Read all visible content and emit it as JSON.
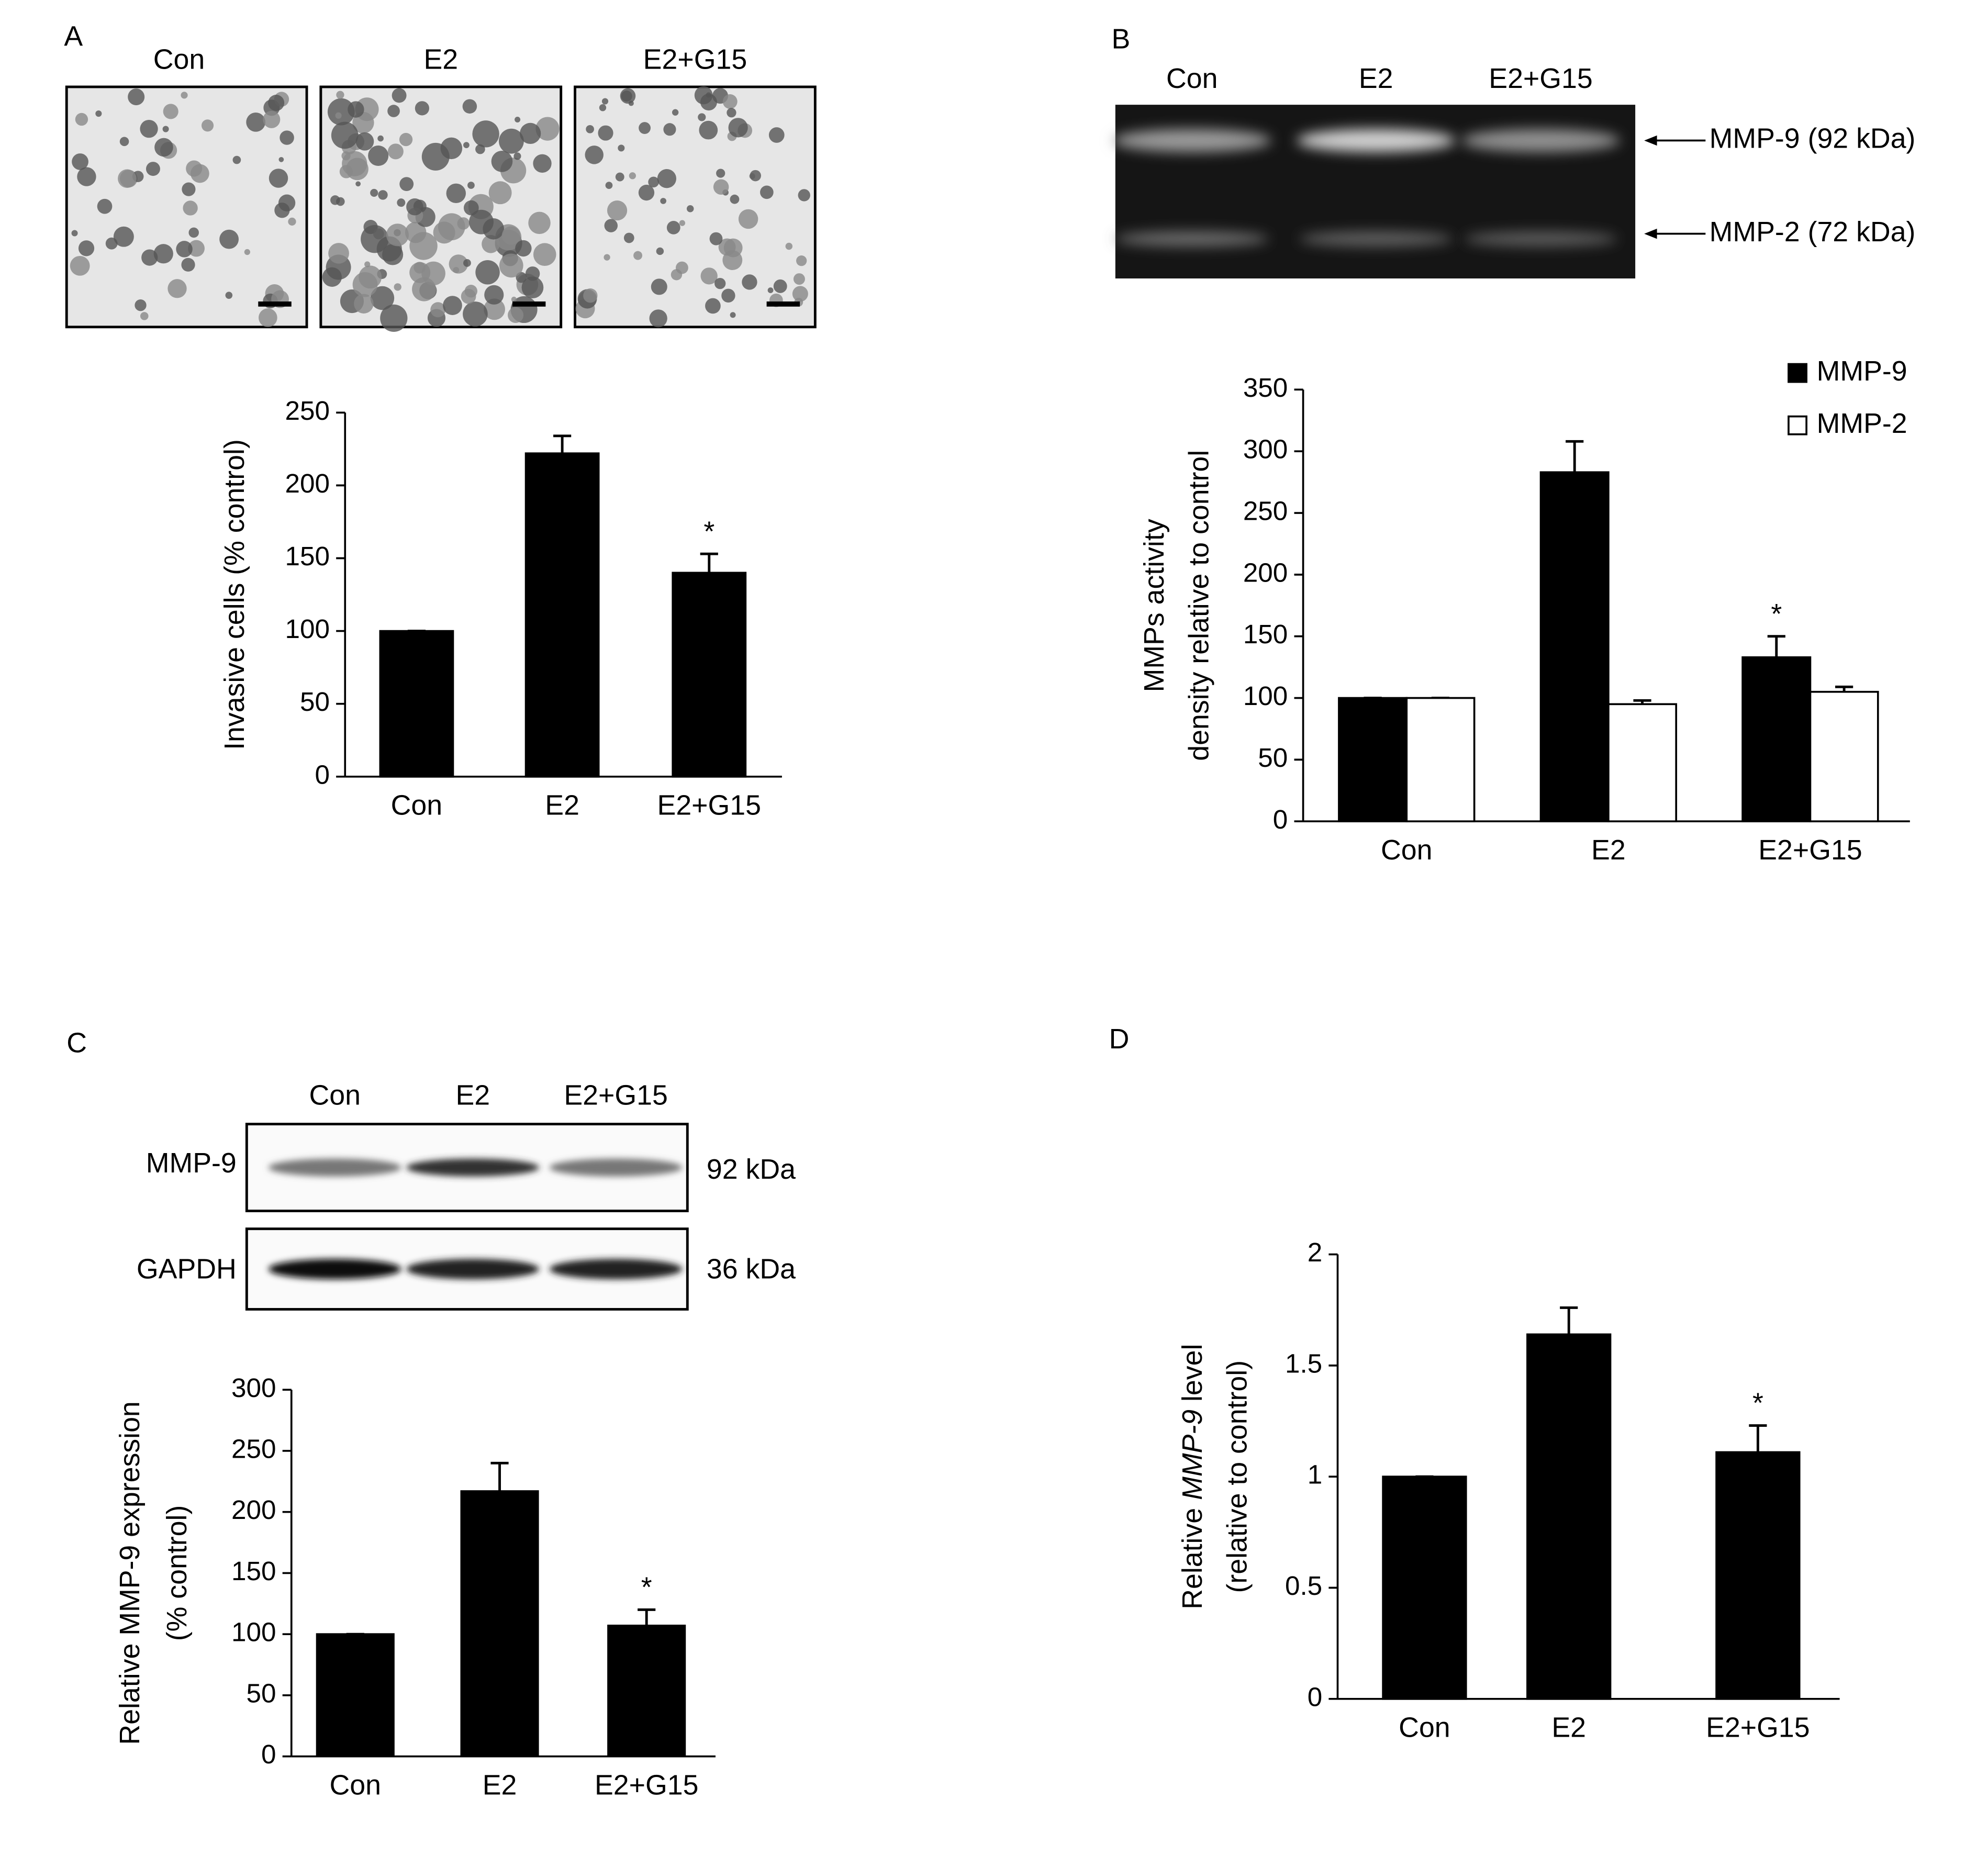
{
  "chart_data": [
    {
      "type": "bar",
      "panel_label": "A",
      "image_labels": [
        "Con",
        "E2",
        "E2+G15"
      ],
      "y_label": "Invasive cells (% control)",
      "categories": [
        "Con",
        "E2",
        "E2+G15"
      ],
      "values": [
        100,
        222,
        140
      ],
      "errors": [
        0,
        12,
        13
      ],
      "significance": [
        null,
        null,
        "*"
      ],
      "color": "#000000",
      "ylim": [
        0,
        250
      ],
      "yticks": [
        0,
        50,
        100,
        150,
        200,
        250
      ]
    },
    {
      "type": "bar",
      "panel_label": "B",
      "gel": {
        "lane_labels": [
          "Con",
          "E2",
          "E2+G15"
        ],
        "band_labels": [
          "MMP-9 (92 kDa)",
          "MMP-2 (72 kDa)"
        ]
      },
      "y_label": [
        "MMPs activity",
        "density relative to control"
      ],
      "categories": [
        "Con",
        "E2",
        "E2+G15"
      ],
      "series": [
        {
          "name": "MMP-9",
          "color": "#000000",
          "values": [
            100,
            283,
            133
          ],
          "errors": [
            0,
            25,
            17
          ],
          "significance": [
            null,
            null,
            "*"
          ]
        },
        {
          "name": "MMP-2",
          "color": "#ffffff",
          "values": [
            100,
            95,
            105
          ],
          "errors": [
            0,
            3,
            4
          ],
          "significance": [
            null,
            null,
            null
          ]
        }
      ],
      "ylim": [
        0,
        350
      ],
      "yticks": [
        0,
        50,
        100,
        150,
        200,
        250,
        300,
        350
      ],
      "legend": "upper right"
    },
    {
      "type": "bar",
      "panel_label": "C",
      "blot": {
        "lane_labels": [
          "Con",
          "E2",
          "E2+G15"
        ],
        "rows": [
          {
            "label": "MMP-9",
            "size": "92 kDa"
          },
          {
            "label": "GAPDH",
            "size": "36 kDa"
          }
        ]
      },
      "y_label": [
        "Relative MMP-9 expression",
        "(% control)"
      ],
      "categories": [
        "Con",
        "E2",
        "E2+G15"
      ],
      "values": [
        100,
        217,
        107
      ],
      "errors": [
        0,
        23,
        13
      ],
      "significance": [
        null,
        null,
        "*"
      ],
      "color": "#000000",
      "ylim": [
        0,
        300
      ],
      "yticks": [
        0,
        50,
        100,
        150,
        200,
        250,
        300
      ]
    },
    {
      "type": "bar",
      "panel_label": "D",
      "y_label": [
        [
          "Relative ",
          "MMP-9",
          " level"
        ],
        "(relative to control)"
      ],
      "categories": [
        "Con",
        "E2",
        "E2+G15"
      ],
      "values": [
        1,
        1.64,
        1.11
      ],
      "errors": [
        0,
        0.12,
        0.12
      ],
      "significance": [
        null,
        null,
        "*"
      ],
      "color": "#000000",
      "ylim": [
        0,
        2
      ],
      "yticks": [
        0,
        0.5,
        1,
        1.5,
        2
      ]
    }
  ]
}
